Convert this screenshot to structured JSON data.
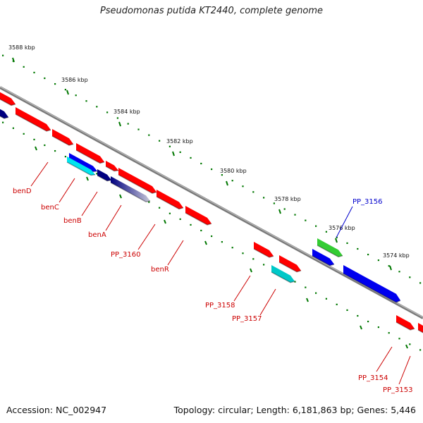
{
  "title": "Pseudomonas putida KT2440, complete genome",
  "footer": {
    "accession": "Accession: NC_002947",
    "summary": "Topology: circular; Length: 6,181,863 bp; Genes: 5,446"
  },
  "scale_ticks": [
    "3588 kbp",
    "3586 kbp",
    "3584 kbp",
    "3582 kbp",
    "3580 kbp",
    "3578 kbp",
    "3576 kbp",
    "3574 kbp"
  ],
  "gene_labels": [
    "benD",
    "benC",
    "benB",
    "benA",
    "PP_3160",
    "benR",
    "PP_3158",
    "PP_3157",
    "PP_3156",
    "PP_3154",
    "PP_3153"
  ],
  "colors": {
    "red_gene": "#ff0000",
    "blue_gene": "#0000ee",
    "navy_gene": "#000080",
    "cyan_gene": "#00e5ee",
    "teal_gene": "#00c8c8",
    "green_gene": "#33cc33",
    "tick_green": "#007700",
    "backbone": "#7a7a7a",
    "label_red": "#cc0000",
    "label_blue": "#0000cc"
  }
}
